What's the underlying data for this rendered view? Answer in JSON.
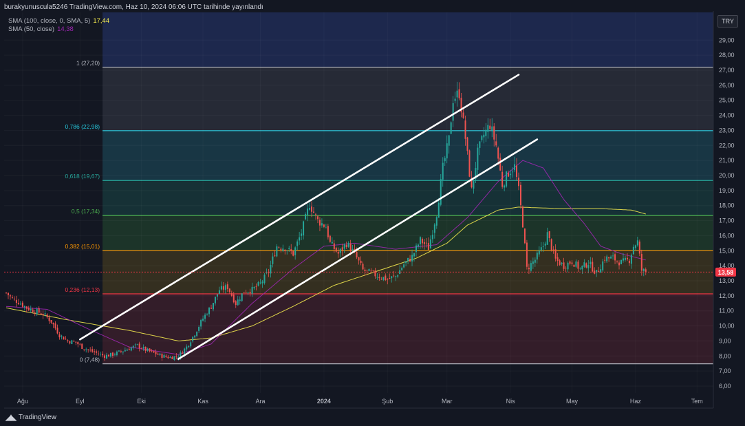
{
  "header": {
    "text": "burakyunuscula5246 TradingView.com, Haz 10, 2024 06:06 UTC tarihinde yayınlandı"
  },
  "legend": [
    {
      "label": "SMA (100, close, 0, SMA, 5)",
      "value": "17,44",
      "color": "#f2e94e"
    },
    {
      "label": "SMA (50, close)",
      "value": "14,38",
      "color": "#9c27b0"
    }
  ],
  "currency": "TRY",
  "last_price": {
    "label": "13,58",
    "value": 13.58,
    "color": "#f23645"
  },
  "branding": {
    "name": "TradingView"
  },
  "colors": {
    "background": "#131722",
    "up": "#26a69a",
    "down": "#ef5350",
    "channel": "#ffffff"
  },
  "chart_data": {
    "type": "candlestick",
    "x_ticks": [
      {
        "label": "Ağu",
        "index": 8
      },
      {
        "label": "Eyl",
        "index": 36
      },
      {
        "label": "Eki",
        "index": 66
      },
      {
        "label": "Kas",
        "index": 96
      },
      {
        "label": "Ara",
        "index": 124
      },
      {
        "label": "2024",
        "index": 155
      },
      {
        "label": "Şub",
        "index": 186
      },
      {
        "label": "Mar",
        "index": 215
      },
      {
        "label": "Nis",
        "index": 246
      },
      {
        "label": "May",
        "index": 276
      },
      {
        "label": "Haz",
        "index": 307
      },
      {
        "label": "Tem",
        "index": 337
      }
    ],
    "y_ticks": [
      "6,00",
      "7,00",
      "8,00",
      "9,00",
      "10,00",
      "11,00",
      "12,00",
      "13,00",
      "14,00",
      "15,00",
      "16,00",
      "17,00",
      "18,00",
      "19,00",
      "20,00",
      "21,00",
      "22,00",
      "23,00",
      "24,00",
      "25,00",
      "26,00",
      "27,00",
      "28,00",
      "29,00"
    ],
    "y_range": [
      6,
      29
    ],
    "fib_levels": [
      {
        "ratio": 1,
        "label": "1 (27,20)",
        "value": 27.2,
        "color": "#b2b5be",
        "fill": "#2a2e39"
      },
      {
        "ratio": 0.786,
        "label": "0,786 (22,98)",
        "value": 22.98,
        "color": "#26c6da",
        "fill": "#1a3c4a"
      },
      {
        "ratio": 0.618,
        "label": "0,618 (19,67)",
        "value": 19.67,
        "color": "#26a69a",
        "fill": "#17363a"
      },
      {
        "ratio": 0.5,
        "label": "0,5 (17,34)",
        "value": 17.34,
        "color": "#4caf50",
        "fill": "#1f3a2a"
      },
      {
        "ratio": 0.382,
        "label": "0,382 (15,01)",
        "value": 15.01,
        "color": "#ff9800",
        "fill": "#3b3420"
      },
      {
        "ratio": 0.236,
        "label": "0,236 (12,13)",
        "value": 12.13,
        "color": "#f23645",
        "fill": "#3a1e2a"
      },
      {
        "ratio": 0,
        "label": "0 (7,48)",
        "value": 7.48,
        "color": "#b2b5be",
        "fill": null
      }
    ],
    "fib_extension_fill": "#1f2a52",
    "fib_start_index": 47,
    "channel_lines": [
      {
        "from": {
          "index": 36,
          "value": 9.1
        },
        "to": {
          "index": 250,
          "value": 26.7
        }
      },
      {
        "from": {
          "index": 84,
          "value": 7.8
        },
        "to": {
          "index": 259,
          "value": 22.4
        }
      }
    ],
    "close_anchors": [
      [
        0,
        12.2
      ],
      [
        3,
        11.8
      ],
      [
        6,
        11.6
      ],
      [
        10,
        11.2
      ],
      [
        14,
        11.0
      ],
      [
        18,
        10.8
      ],
      [
        22,
        10.3
      ],
      [
        26,
        9.4
      ],
      [
        30,
        9.0
      ],
      [
        34,
        8.9
      ],
      [
        37,
        8.6
      ],
      [
        40,
        8.4
      ],
      [
        44,
        8.2
      ],
      [
        48,
        8.0
      ],
      [
        52,
        8.1
      ],
      [
        56,
        8.3
      ],
      [
        60,
        8.5
      ],
      [
        64,
        8.7
      ],
      [
        68,
        8.4
      ],
      [
        72,
        8.2
      ],
      [
        76,
        8.0
      ],
      [
        80,
        7.9
      ],
      [
        84,
        8.0
      ],
      [
        88,
        8.6
      ],
      [
        92,
        9.5
      ],
      [
        96,
        10.5
      ],
      [
        100,
        11.3
      ],
      [
        104,
        12.4
      ],
      [
        108,
        12.6
      ],
      [
        112,
        11.5
      ],
      [
        116,
        12.3
      ],
      [
        120,
        12.4
      ],
      [
        124,
        12.8
      ],
      [
        128,
        13.6
      ],
      [
        132,
        15.3
      ],
      [
        136,
        15.2
      ],
      [
        140,
        14.8
      ],
      [
        144,
        16.2
      ],
      [
        148,
        18.1
      ],
      [
        152,
        17.0
      ],
      [
        156,
        16.6
      ],
      [
        158,
        15.5
      ],
      [
        162,
        14.8
      ],
      [
        166,
        15.5
      ],
      [
        170,
        14.8
      ],
      [
        174,
        13.7
      ],
      [
        178,
        13.5
      ],
      [
        182,
        13.3
      ],
      [
        186,
        13.1
      ],
      [
        190,
        13.3
      ],
      [
        194,
        14.1
      ],
      [
        198,
        14.6
      ],
      [
        202,
        15.7
      ],
      [
        206,
        15.2
      ],
      [
        210,
        17.5
      ],
      [
        213,
        20.5
      ],
      [
        216,
        22.4
      ],
      [
        218,
        25.1
      ],
      [
        221,
        25.5
      ],
      [
        224,
        22.5
      ],
      [
        227,
        19.0
      ],
      [
        230,
        21.5
      ],
      [
        233,
        22.7
      ],
      [
        236,
        23.4
      ],
      [
        239,
        22.0
      ],
      [
        242,
        19.4
      ],
      [
        245,
        20.2
      ],
      [
        248,
        20.6
      ],
      [
        250,
        19.0
      ],
      [
        252,
        16.8
      ],
      [
        254,
        13.8
      ],
      [
        258,
        14.4
      ],
      [
        262,
        15.3
      ],
      [
        264,
        16.1
      ],
      [
        268,
        14.4
      ],
      [
        272,
        14.0
      ],
      [
        276,
        14.3
      ],
      [
        280,
        13.8
      ],
      [
        284,
        14.2
      ],
      [
        288,
        13.5
      ],
      [
        292,
        14.5
      ],
      [
        296,
        14.5
      ],
      [
        300,
        14.2
      ],
      [
        304,
        14.4
      ],
      [
        306,
        15.3
      ],
      [
        308,
        15.6
      ],
      [
        310,
        13.7
      ],
      [
        312,
        13.58
      ]
    ],
    "candles": {
      "count": 313,
      "first_index": 0,
      "last_index": 312,
      "last_close": 13.58
    },
    "sma_100": {
      "name": "SMA (100, close, 0, SMA, 5)",
      "color": "#f2e94e",
      "last": 17.44,
      "anchors": [
        [
          0,
          11.2
        ],
        [
          30,
          10.4
        ],
        [
          60,
          9.7
        ],
        [
          84,
          9.0
        ],
        [
          100,
          9.2
        ],
        [
          120,
          10.0
        ],
        [
          140,
          11.3
        ],
        [
          160,
          12.7
        ],
        [
          180,
          13.6
        ],
        [
          200,
          14.5
        ],
        [
          215,
          15.5
        ],
        [
          225,
          16.7
        ],
        [
          240,
          17.7
        ],
        [
          250,
          17.9
        ],
        [
          270,
          17.8
        ],
        [
          290,
          17.8
        ],
        [
          305,
          17.7
        ],
        [
          312,
          17.44
        ]
      ]
    },
    "sma_50": {
      "name": "SMA (50, close)",
      "color": "#9c27b0",
      "last": 14.38,
      "anchors": [
        [
          0,
          11.3
        ],
        [
          20,
          11.1
        ],
        [
          40,
          9.8
        ],
        [
          60,
          8.6
        ],
        [
          84,
          8.1
        ],
        [
          100,
          8.8
        ],
        [
          120,
          11.5
        ],
        [
          140,
          13.8
        ],
        [
          155,
          15.3
        ],
        [
          170,
          15.5
        ],
        [
          190,
          15.1
        ],
        [
          210,
          15.4
        ],
        [
          225,
          17.2
        ],
        [
          240,
          19.6
        ],
        [
          252,
          21.0
        ],
        [
          262,
          20.5
        ],
        [
          272,
          18.4
        ],
        [
          282,
          16.8
        ],
        [
          290,
          15.3
        ],
        [
          300,
          14.8
        ],
        [
          312,
          14.38
        ]
      ]
    }
  }
}
